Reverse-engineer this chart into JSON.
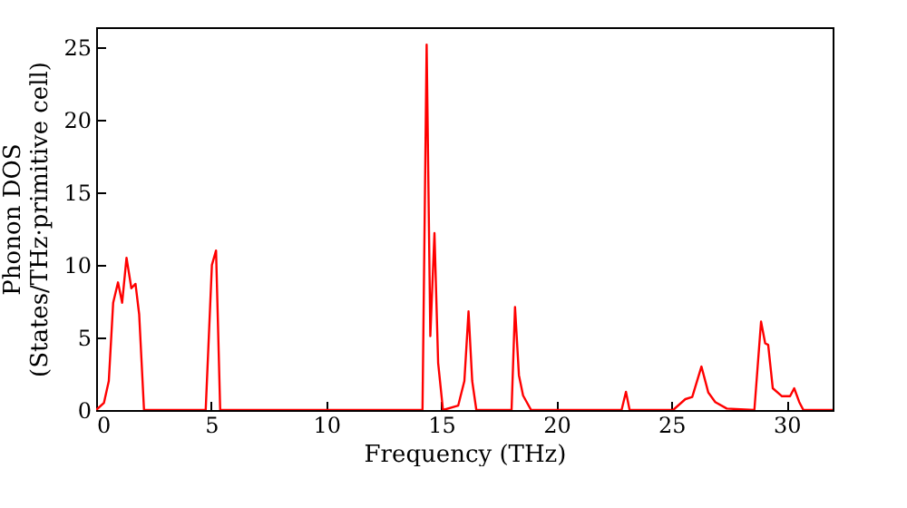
{
  "chart_data": {
    "type": "line",
    "xlabel": "Frequency (THz)",
    "ylabel": "Phonon DOS\n(States/THz·primitive cell)",
    "x": [
      0,
      0.34,
      0.55,
      0.74,
      0.95,
      1.13,
      1.32,
      1.53,
      1.71,
      1.87,
      2.08,
      4.76,
      5.03,
      5.21,
      5.39,
      14.18,
      14.36,
      14.52,
      14.7,
      14.86,
      15.07,
      15.73,
      16.0,
      16.18,
      16.34,
      16.52,
      18.05,
      18.2,
      18.37,
      18.55,
      18.9,
      22.83,
      23.02,
      23.18,
      25.07,
      25.6,
      25.9,
      26.3,
      26.6,
      26.9,
      27.4,
      28.6,
      28.89,
      29.07,
      29.2,
      29.4,
      29.8,
      30.15,
      30.33,
      30.55,
      30.73,
      32
    ],
    "series": [
      {
        "color": "#ff0000",
        "values": [
          0,
          0.5,
          2,
          7.4,
          8.8,
          7.4,
          10.5,
          8.4,
          8.7,
          6.6,
          0,
          0,
          10,
          11,
          0,
          0,
          25.2,
          5.1,
          12.2,
          3.25,
          0,
          0.3,
          2,
          6.8,
          2,
          0,
          0,
          7.1,
          2.4,
          1,
          0,
          0,
          1.25,
          0,
          0,
          0.75,
          0.9,
          3,
          1.2,
          0.55,
          0.1,
          0,
          6.1,
          4.6,
          4.5,
          1.5,
          0.95,
          0.95,
          1.5,
          0.55,
          0,
          0
        ]
      }
    ],
    "xlim": [
      0,
      32
    ],
    "xticks": [
      0,
      5,
      10,
      15,
      20,
      25,
      30
    ],
    "ylim": [
      0,
      26.4
    ],
    "yticks": [
      0,
      5,
      10,
      15,
      20,
      25
    ],
    "grid": false,
    "legend": false,
    "marker": "none",
    "line_style": "solid"
  }
}
